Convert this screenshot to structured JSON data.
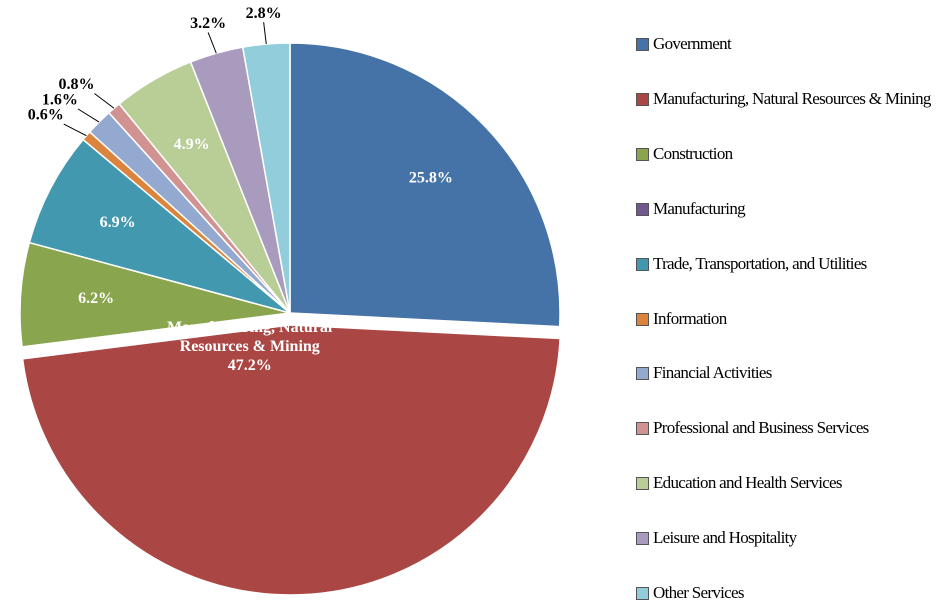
{
  "chart_data": {
    "type": "pie",
    "categories": [
      "Government",
      "Manufacturing, Natural Resources & Mining",
      "Construction",
      "Manufacturing",
      "Trade, Transportation, and Utilities",
      "Information",
      "Financial Activities",
      "Professional and Business Services",
      "Education and Health Services",
      "Leisure and Hospitality",
      "Other Services"
    ],
    "values": [
      25.8,
      47.2,
      6.2,
      0,
      6.9,
      0.6,
      1.6,
      0.8,
      4.9,
      3.2,
      2.8
    ],
    "value_labels": [
      "25.8%",
      "47.2%",
      "6.2%",
      null,
      "6.9%",
      "0.6%",
      "1.6%",
      "0.8%",
      "4.9%",
      "3.2%",
      "2.8%"
    ],
    "colors": [
      "#4572a7",
      "#aa4643",
      "#89a54e",
      "#71588f",
      "#4198af",
      "#db843d",
      "#93a9cf",
      "#d19392",
      "#b9cd96",
      "#a99bbd",
      "#92cddc"
    ],
    "legend": "right"
  }
}
